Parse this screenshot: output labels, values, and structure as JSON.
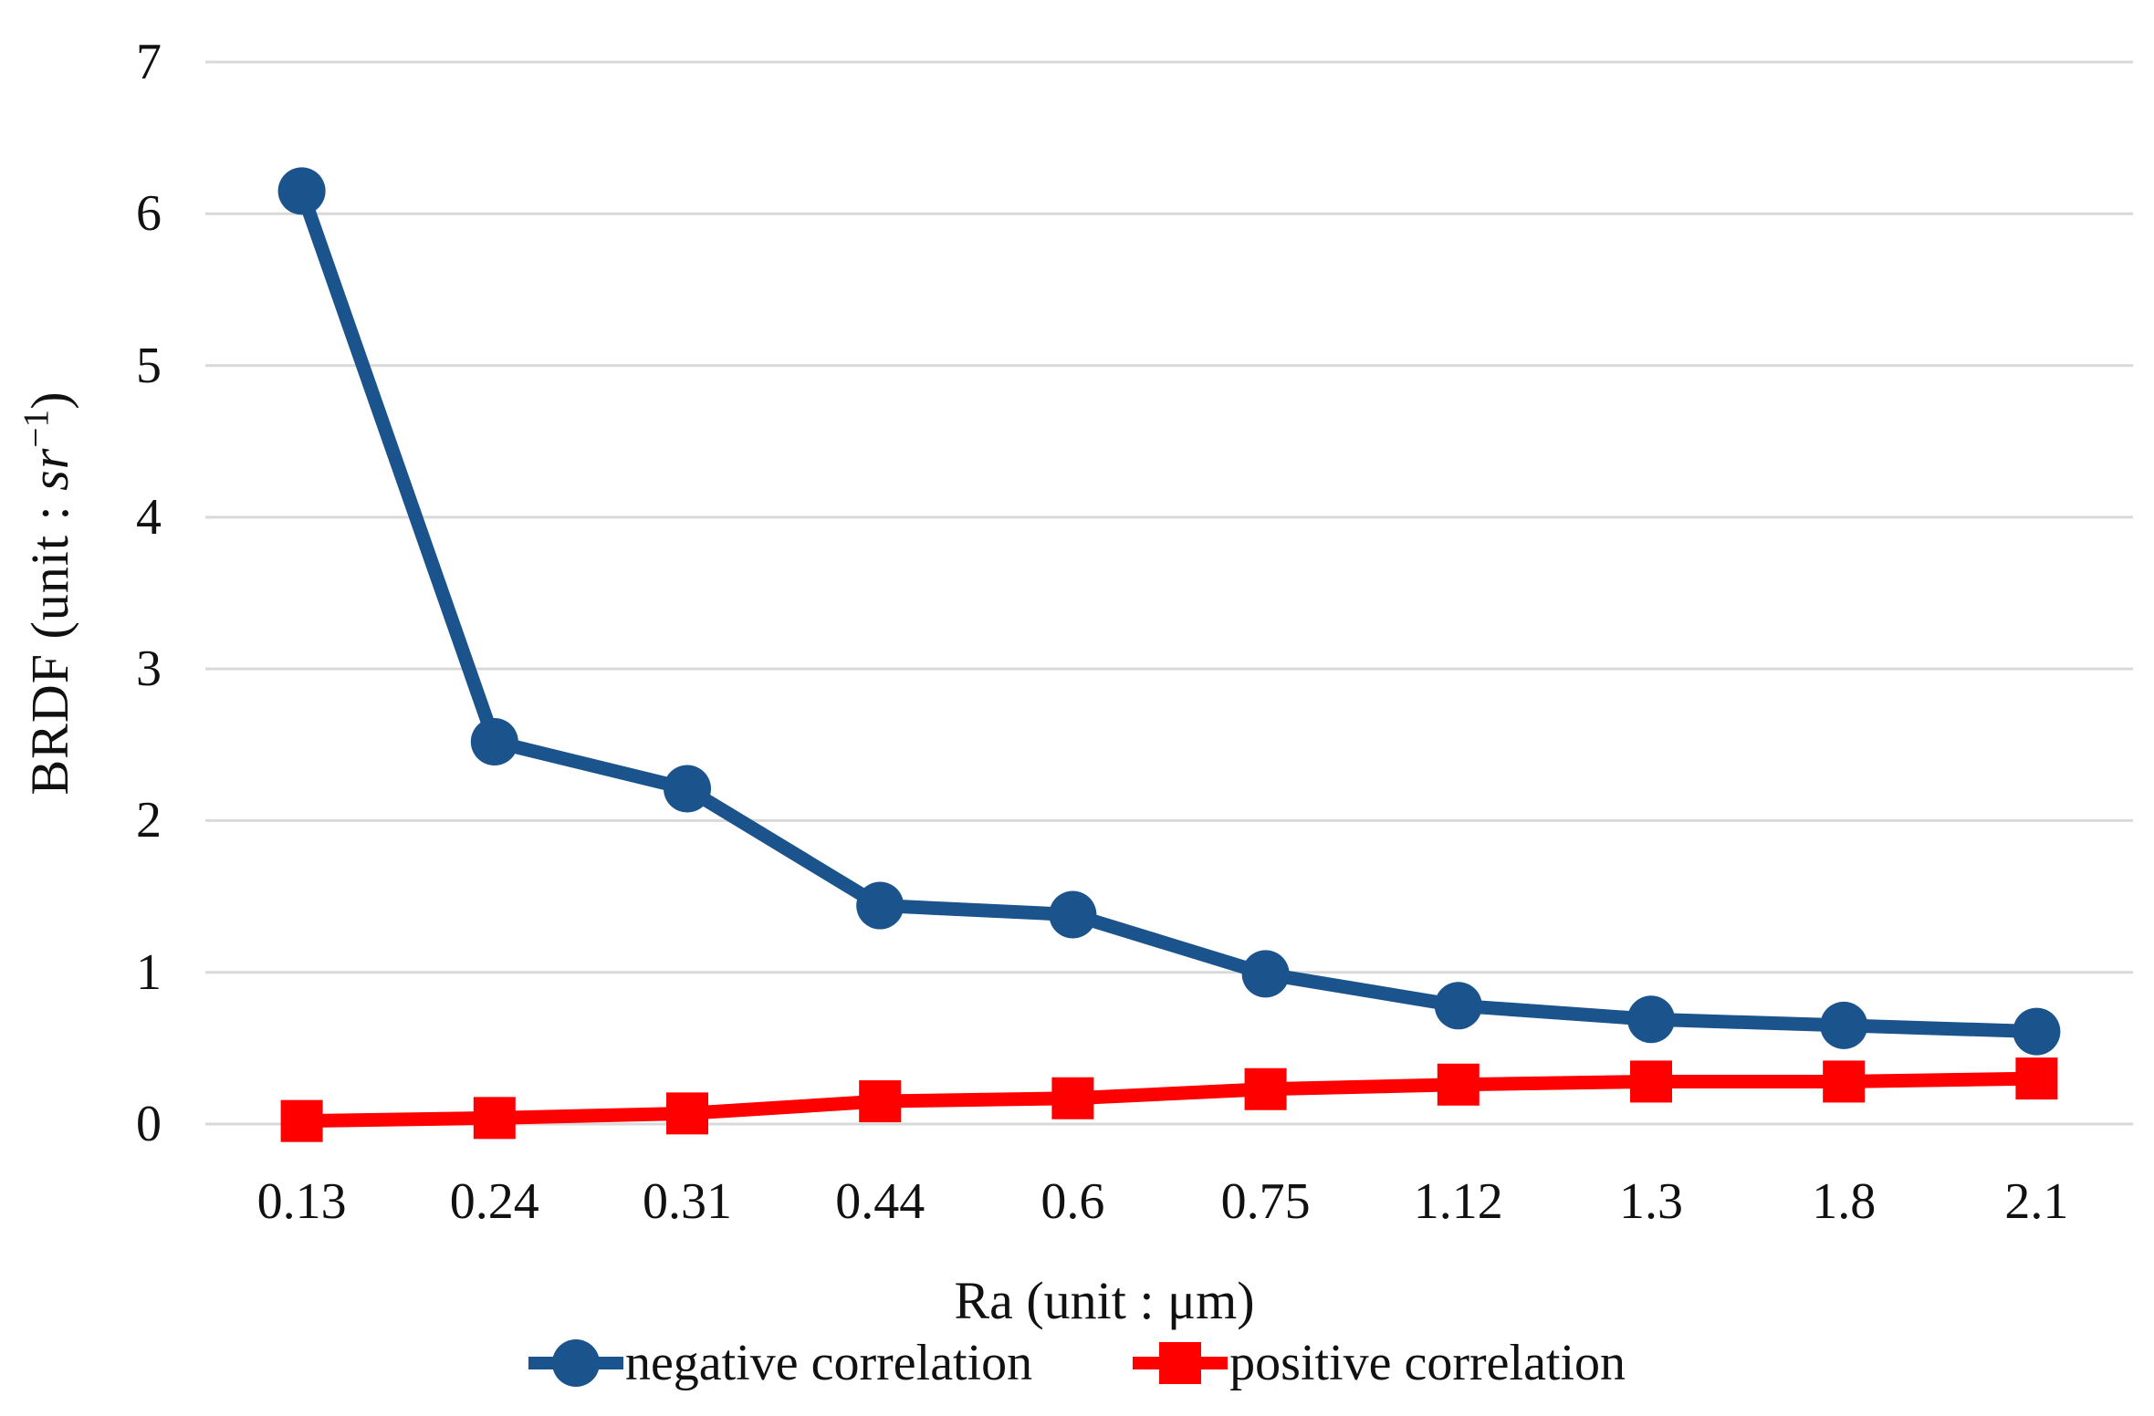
{
  "chart_data": {
    "type": "line",
    "title": "",
    "categories": [
      "0.13",
      "0.24",
      "0.31",
      "0.44",
      "0.6",
      "0.75",
      "1.12",
      "1.3",
      "1.8",
      "2.1"
    ],
    "series": [
      {
        "name": "negative correlation",
        "marker": "circle",
        "color": "#1b538d",
        "values": [
          6.15,
          2.52,
          2.21,
          1.44,
          1.38,
          0.99,
          0.78,
          0.69,
          0.65,
          0.61
        ]
      },
      {
        "name": "positive correlation",
        "marker": "square",
        "color": "#ff0000",
        "values": [
          0.02,
          0.04,
          0.07,
          0.15,
          0.17,
          0.23,
          0.26,
          0.28,
          0.28,
          0.3
        ]
      }
    ],
    "xlabel": "Ra (unit : μm)",
    "ylabel": "BRDF (unit : sr⁻¹)",
    "ylabel_parts": {
      "prefix": "BRDF (unit : ",
      "italic": "sr",
      "superscript": "−1",
      "suffix": ")"
    },
    "ylim": [
      0,
      7
    ],
    "yticks": [
      0,
      1,
      2,
      3,
      4,
      5,
      6,
      7
    ],
    "grid": "horizontal",
    "gridline_color": "#d9d9d9",
    "legend_position": "bottom"
  }
}
